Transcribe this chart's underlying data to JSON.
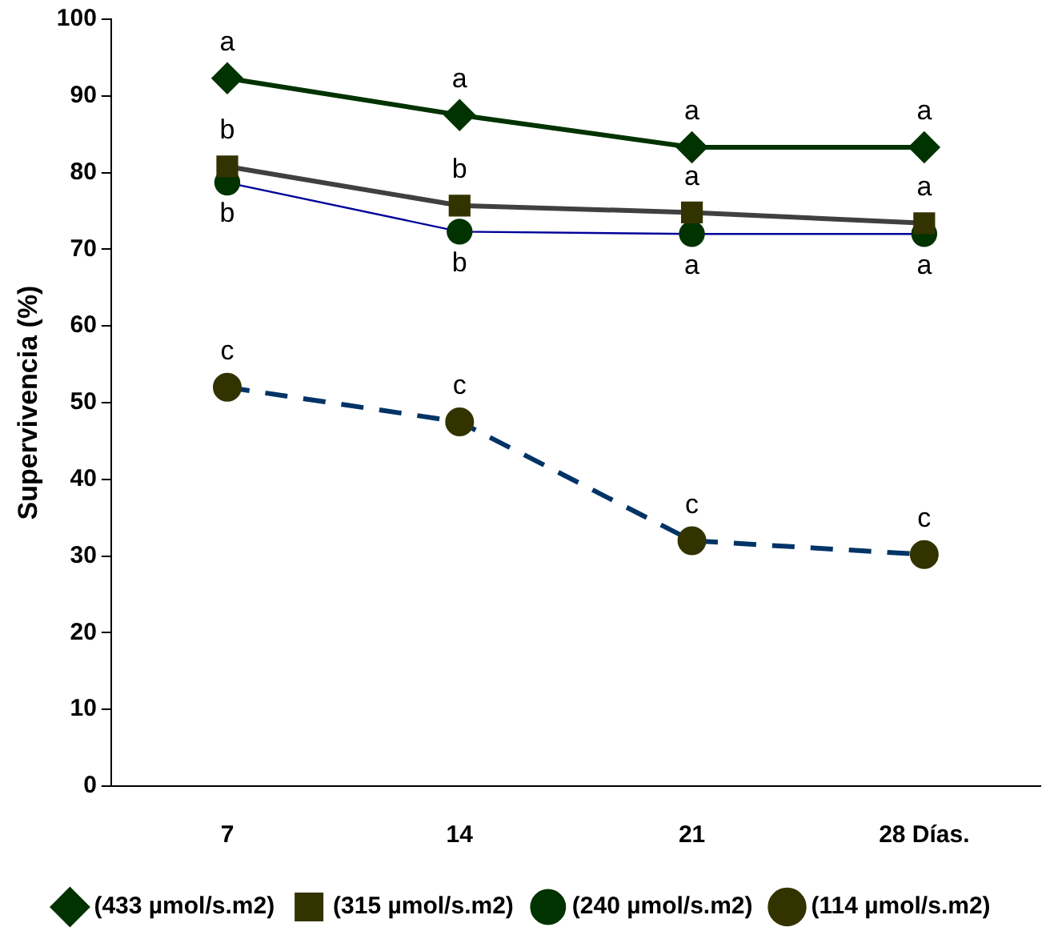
{
  "chart_data": {
    "type": "line",
    "ylabel": "Supervivencia (%)",
    "categories": [
      "7",
      "14",
      "21",
      "28 Días."
    ],
    "ylim": [
      0,
      100
    ],
    "yticks": [
      0,
      10,
      20,
      30,
      40,
      50,
      60,
      70,
      80,
      90,
      100
    ],
    "grid": false,
    "legend": "bottom",
    "series": [
      {
        "name": "(433 µmol/s.m2)",
        "color": "#003300",
        "marker": "diamond",
        "line_style": "solid",
        "values": [
          92.3,
          87.5,
          83.3,
          83.3
        ],
        "value_labels": [
          "a",
          "a",
          "a",
          "a"
        ]
      },
      {
        "name": "(315 µmol/s.m2)",
        "color": "#404040",
        "marker": "square",
        "line_style": "solid",
        "values": [
          80.8,
          75.7,
          74.8,
          73.4
        ],
        "value_labels": [
          "b",
          "b",
          "a",
          "a"
        ]
      },
      {
        "name": "(240 µmol/s.m2)",
        "color": "#000099",
        "marker": "circle",
        "line_style": "solid",
        "values": [
          78.7,
          72.3,
          72.0,
          72.0
        ],
        "value_labels": [
          "b",
          "b",
          "a",
          "a"
        ]
      },
      {
        "name": "(114 µmol/s.m2)",
        "color": "#003366",
        "marker": "circle",
        "line_style": "dashed",
        "values": [
          52,
          47.5,
          32,
          30.2
        ],
        "value_labels": [
          "c",
          "c",
          "c",
          "c"
        ]
      }
    ]
  }
}
